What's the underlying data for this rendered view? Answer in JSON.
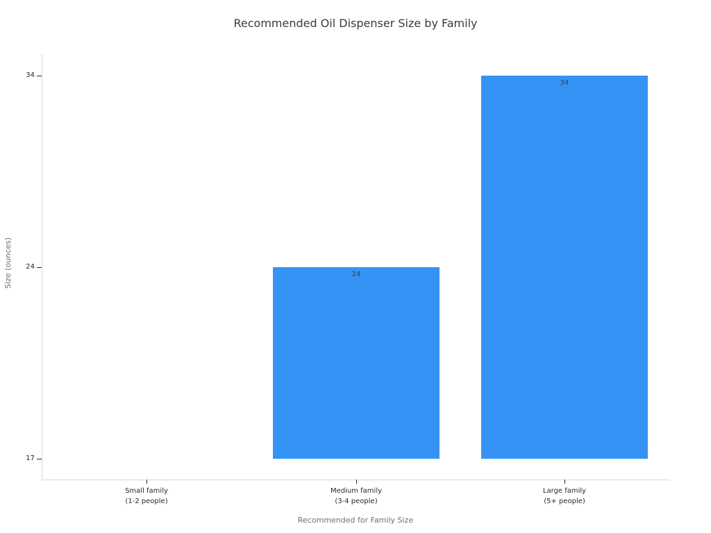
{
  "chart_data": {
    "type": "bar",
    "title": "Recommended Oil Dispenser Size by Family",
    "xlabel": "Recommended for Family Size",
    "ylabel": "Size (ounces)",
    "categories": [
      [
        "Small family",
        "(1-2 people)"
      ],
      [
        "Medium family",
        "(3-4 people)"
      ],
      [
        "Large family",
        "(5+ people)"
      ]
    ],
    "values": [
      17,
      24,
      34
    ],
    "value_labels": [
      "",
      "24",
      "34"
    ],
    "yticks": [
      17,
      24,
      34
    ],
    "ytick_labels": [
      "17",
      "24",
      "34"
    ],
    "baseline_value": 17,
    "grid": "off",
    "legend": "none",
    "bar_color": "#3493f5",
    "value_label_color": "#33404d",
    "tick_label_color": "#262626",
    "axis_label_color": "#707070",
    "title_color": "#3a3a3a",
    "spine_color": "#d7d7d7",
    "background_color": "#ffffff"
  }
}
